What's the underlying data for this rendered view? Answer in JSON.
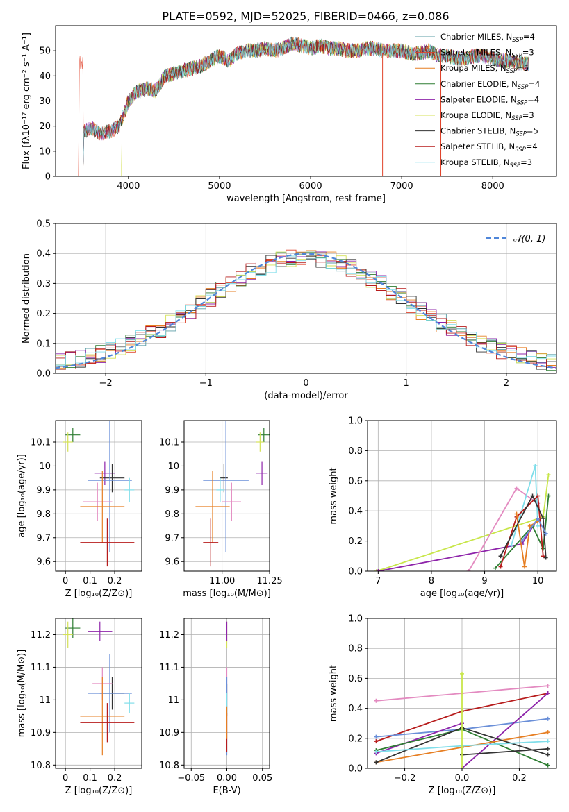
{
  "figure_title": "PLATE=0592, MJD=52025, FIBERID=0466, z=0.086",
  "colors": [
    "#5b9ea6",
    "#e0442c",
    "#e67e22",
    "#2e7d32",
    "#8e24aa",
    "#d4e157",
    "#333333",
    "#b71c1c",
    "#80deea",
    "#6a8fd8",
    "#e38ac0",
    "#c8e64a"
  ],
  "chart_data": [
    {
      "id": "spectrum",
      "type": "line",
      "title": "PLATE=0592, MJD=52025, FIBERID=0466, z=0.086",
      "xlabel": "wavelength [Angstrom, rest frame]",
      "ylabel": "Flux [fλ10⁻¹⁷ erg cm⁻² s⁻¹ A⁻¹]",
      "xlim": [
        3200,
        8700
      ],
      "ylim": [
        0,
        60
      ],
      "xticks": [
        4000,
        5000,
        6000,
        7000,
        8000
      ],
      "yticks": [
        0,
        10,
        20,
        30,
        40,
        50
      ],
      "grid": false,
      "legend_position": "top-right",
      "envelope": {
        "x": [
          3500,
          3600,
          3700,
          3800,
          3900,
          4000,
          4100,
          4200,
          4300,
          4400,
          4500,
          4600,
          4700,
          4800,
          4900,
          5000,
          5100,
          5200,
          5300,
          5400,
          5500,
          5600,
          5700,
          5800,
          5900,
          6000,
          6100,
          6200,
          6300,
          6400,
          6500,
          6600,
          6700,
          6800,
          6900,
          7000,
          7100,
          7200,
          7300,
          7400,
          7500,
          7600,
          7700,
          7800,
          7900,
          8000,
          8100,
          8200,
          8300,
          8400
        ],
        "y": [
          18,
          19,
          17,
          18,
          20,
          30,
          34,
          35,
          34,
          40,
          41,
          42,
          43,
          44,
          46,
          48,
          46,
          49,
          50,
          50,
          51,
          50,
          51,
          53,
          52,
          51,
          52,
          51,
          51,
          50,
          50,
          51,
          51,
          50,
          50,
          50,
          49,
          49,
          50,
          48,
          48,
          47,
          47,
          48,
          48,
          47,
          46,
          46,
          45,
          45
        ]
      },
      "series": [
        {
          "name": "Chabrier MILES, N_SSP=4"
        },
        {
          "name": "Salpeter MILES, N_SSP=3"
        },
        {
          "name": "Kroupa MILES, N_SSP=5"
        },
        {
          "name": "Chabrier ELODIE, N_SSP=4"
        },
        {
          "name": "Salpeter ELODIE, N_SSP=4"
        },
        {
          "name": "Kroupa ELODIE, N_SSP=3"
        },
        {
          "name": "Chabrier STELIB, N_SSP=5"
        },
        {
          "name": "Salpeter STELIB, N_SSP=4"
        },
        {
          "name": "Kroupa STELIB, N_SSP=3"
        }
      ],
      "legend": [
        {
          "name": "Chabrier MILES, N",
          "sub": "SSP",
          "tail": "=4"
        },
        {
          "name": "Salpeter MILES, N",
          "sub": "SSP",
          "tail": "=3"
        },
        {
          "name": "Kroupa MILES, N",
          "sub": "SSP",
          "tail": "=5"
        },
        {
          "name": "Chabrier ELODIE, N",
          "sub": "SSP",
          "tail": "=4"
        },
        {
          "name": "Salpeter ELODIE, N",
          "sub": "SSP",
          "tail": "=4"
        },
        {
          "name": "Kroupa ELODIE, N",
          "sub": "SSP",
          "tail": "=3"
        },
        {
          "name": "Chabrier STELIB, N",
          "sub": "SSP",
          "tail": "=5"
        },
        {
          "name": "Salpeter STELIB, N",
          "sub": "SSP",
          "tail": "=4"
        },
        {
          "name": "Kroupa STELIB, N",
          "sub": "SSP",
          "tail": "=3"
        }
      ]
    },
    {
      "id": "residuals",
      "type": "line",
      "xlabel": "(data-model)/error",
      "ylabel": "Normed distribution",
      "xlim": [
        -2.5,
        2.5
      ],
      "ylim": [
        0,
        0.5
      ],
      "xticks": [
        -2,
        -1,
        0,
        1,
        2
      ],
      "yticks": [
        0.0,
        0.1,
        0.2,
        0.3,
        0.4,
        0.5
      ],
      "grid": true,
      "legend_position": "top-right",
      "legend": [
        {
          "name": "𝒩(0, 1)"
        }
      ],
      "gaussian": {
        "mu": 0,
        "sigma": 1
      }
    },
    {
      "id": "age_vs_Z",
      "type": "scatter",
      "xlabel": "Z [log₁₀(Z/Z⊙)]",
      "ylabel": "age  [log₁₀(age/yr)]",
      "xlim": [
        -0.04,
        0.31
      ],
      "ylim": [
        9.56,
        10.19
      ],
      "xticks": [
        0.0,
        0.1,
        0.2
      ],
      "yticks": [
        9.6,
        9.7,
        9.8,
        9.9,
        10.0,
        10.1
      ],
      "grid": true,
      "points": [
        {
          "x": 0.03,
          "y": 10.13,
          "xerr": 0.03,
          "yerr": 0.03,
          "c": 3
        },
        {
          "x": 0.01,
          "y": 10.1,
          "xerr": 0.02,
          "yerr": 0.04,
          "c": 5
        },
        {
          "x": 0.16,
          "y": 9.97,
          "xerr": 0.04,
          "yerr": 0.05,
          "c": 4
        },
        {
          "x": 0.19,
          "y": 9.95,
          "xerr": 0.05,
          "yerr": 0.06,
          "c": 6
        },
        {
          "x": 0.18,
          "y": 9.94,
          "xerr": 0.09,
          "yerr": 0.3,
          "c": 9
        },
        {
          "x": 0.26,
          "y": 9.9,
          "xerr": 0.02,
          "yerr": 0.05,
          "c": 8
        },
        {
          "x": 0.13,
          "y": 9.85,
          "xerr": 0.06,
          "yerr": 0.08,
          "c": 10
        },
        {
          "x": 0.15,
          "y": 9.83,
          "xerr": 0.09,
          "yerr": 0.15,
          "c": 2
        },
        {
          "x": 0.17,
          "y": 9.68,
          "xerr": 0.11,
          "yerr": 0.1,
          "c": 7
        }
      ]
    },
    {
      "id": "age_vs_mass",
      "type": "scatter",
      "xlabel": "mass [log₁₀(M/M⊙)]",
      "xlim": [
        10.8,
        11.25
      ],
      "ylim": [
        9.56,
        10.19
      ],
      "xticks": [
        11.0,
        11.25
      ],
      "xticklabels": [
        "11.00",
        "11.25"
      ],
      "yticks": [
        9.6,
        9.7,
        9.8,
        9.9,
        10.0,
        10.1
      ],
      "grid": true,
      "points": [
        {
          "x": 11.22,
          "y": 10.13,
          "xerr": 0.03,
          "yerr": 0.03,
          "c": 3
        },
        {
          "x": 11.2,
          "y": 10.1,
          "xerr": 0.02,
          "yerr": 0.04,
          "c": 5
        },
        {
          "x": 11.21,
          "y": 9.97,
          "xerr": 0.03,
          "yerr": 0.05,
          "c": 4
        },
        {
          "x": 11.01,
          "y": 9.95,
          "xerr": 0.02,
          "yerr": 0.06,
          "c": 6
        },
        {
          "x": 11.02,
          "y": 9.94,
          "xerr": 0.12,
          "yerr": 0.3,
          "c": 9
        },
        {
          "x": 10.99,
          "y": 9.9,
          "xerr": 0.02,
          "yerr": 0.05,
          "c": 8
        },
        {
          "x": 11.05,
          "y": 9.85,
          "xerr": 0.05,
          "yerr": 0.08,
          "c": 10
        },
        {
          "x": 10.95,
          "y": 9.83,
          "xerr": 0.09,
          "yerr": 0.15,
          "c": 2
        },
        {
          "x": 10.94,
          "y": 9.68,
          "xerr": 0.04,
          "yerr": 0.1,
          "c": 7
        }
      ]
    },
    {
      "id": "weight_vs_age",
      "type": "line",
      "xlabel": "age  [log₁₀(age/yr)]",
      "ylabel": "mass weight",
      "xlim": [
        6.8,
        10.35
      ],
      "ylim": [
        0.0,
        1.0
      ],
      "xticks": [
        7,
        8,
        9,
        10
      ],
      "yticks": [
        0.0,
        0.2,
        0.4,
        0.6,
        0.8,
        1.0
      ],
      "grid": true,
      "series": [
        {
          "c": 11,
          "x": [
            6.97,
            10.1
          ],
          "y": [
            0.0,
            0.36
          ]
        },
        {
          "c": 4,
          "x": [
            7.0,
            9.7,
            10.0
          ],
          "y": [
            0.0,
            0.18,
            0.35
          ]
        },
        {
          "c": 10,
          "x": [
            8.7,
            9.6,
            10.0
          ],
          "y": [
            0.0,
            0.55,
            0.45
          ]
        },
        {
          "c": 11,
          "x": [
            10.1,
            10.2
          ],
          "y": [
            0.36,
            0.64
          ]
        },
        {
          "c": 3,
          "x": [
            9.2,
            9.9,
            10.1,
            10.2
          ],
          "y": [
            0.02,
            0.3,
            0.15,
            0.5
          ]
        },
        {
          "c": 8,
          "x": [
            9.5,
            9.95,
            10.0
          ],
          "y": [
            0.17,
            0.7,
            0.3
          ]
        },
        {
          "c": 7,
          "x": [
            9.3,
            9.6,
            10.0,
            10.1
          ],
          "y": [
            0.03,
            0.36,
            0.5,
            0.1
          ]
        },
        {
          "c": 2,
          "x": [
            9.6,
            9.75,
            9.85,
            10.0
          ],
          "y": [
            0.38,
            0.03,
            0.3,
            0.33
          ]
        },
        {
          "c": 6,
          "x": [
            9.3,
            9.9,
            10.1,
            10.15
          ],
          "y": [
            0.1,
            0.5,
            0.35,
            0.09
          ]
        },
        {
          "c": 9,
          "x": [
            9.7,
            10.0,
            10.15
          ],
          "y": [
            0.2,
            0.35,
            0.25
          ]
        }
      ]
    },
    {
      "id": "mass_vs_Z",
      "type": "scatter",
      "xlabel": "Z [log₁₀(Z/Z⊙)]",
      "ylabel": "mass [log₁₀(M/M⊙)]",
      "xlim": [
        -0.04,
        0.31
      ],
      "ylim": [
        10.79,
        11.25
      ],
      "xticks": [
        0.0,
        0.1,
        0.2
      ],
      "yticks": [
        10.8,
        10.9,
        11.0,
        11.1,
        11.2
      ],
      "grid": true,
      "points": [
        {
          "x": 0.03,
          "y": 11.22,
          "xerr": 0.03,
          "yerr": 0.03,
          "c": 3
        },
        {
          "x": 0.01,
          "y": 11.2,
          "xerr": 0.02,
          "yerr": 0.04,
          "c": 5
        },
        {
          "x": 0.14,
          "y": 11.21,
          "xerr": 0.05,
          "yerr": 0.03,
          "c": 4
        },
        {
          "x": 0.19,
          "y": 11.02,
          "xerr": 0.05,
          "yerr": 0.05,
          "c": 6
        },
        {
          "x": 0.18,
          "y": 11.02,
          "xerr": 0.09,
          "yerr": 0.12,
          "c": 9
        },
        {
          "x": 0.26,
          "y": 10.99,
          "xerr": 0.02,
          "yerr": 0.03,
          "c": 8
        },
        {
          "x": 0.15,
          "y": 11.05,
          "xerr": 0.04,
          "yerr": 0.05,
          "c": 10
        },
        {
          "x": 0.15,
          "y": 10.95,
          "xerr": 0.09,
          "yerr": 0.12,
          "c": 2
        },
        {
          "x": 0.17,
          "y": 10.93,
          "xerr": 0.11,
          "yerr": 0.06,
          "c": 7
        }
      ]
    },
    {
      "id": "mass_vs_EBV",
      "type": "scatter",
      "xlabel": "E(B-V)",
      "xlim": [
        -0.06,
        0.06
      ],
      "ylim": [
        10.79,
        11.25
      ],
      "xticks": [
        -0.05,
        0.0,
        0.05
      ],
      "xticklabels": [
        "−0.05",
        "0.00",
        "0.05"
      ],
      "yticks": [
        10.8,
        10.9,
        11.0,
        11.1,
        11.2
      ],
      "grid": true,
      "points": [
        {
          "x": 0.0,
          "y": 11.2,
          "xerr": 0,
          "yerr": 0.04,
          "c": 5
        },
        {
          "x": 0.0,
          "y": 11.21,
          "xerr": 0,
          "yerr": 0.03,
          "c": 4
        },
        {
          "x": 0.0,
          "y": 11.05,
          "xerr": 0,
          "yerr": 0.05,
          "c": 10
        },
        {
          "x": 0.0,
          "y": 11.0,
          "xerr": 0,
          "yerr": 0.05,
          "c": 6
        },
        {
          "x": 0.0,
          "y": 10.95,
          "xerr": 0,
          "yerr": 0.12,
          "c": 9
        },
        {
          "x": 0.0,
          "y": 10.9,
          "xerr": 0,
          "yerr": 0.06,
          "c": 7
        },
        {
          "x": 0.0,
          "y": 10.99,
          "xerr": 0,
          "yerr": 0.03,
          "c": 8
        },
        {
          "x": 0.0,
          "y": 10.93,
          "xerr": 0,
          "yerr": 0.05,
          "c": 2
        }
      ]
    },
    {
      "id": "weight_vs_Z",
      "type": "line",
      "xlabel": "Z [log₁₀(Z/Z⊙)]",
      "ylabel": "mass weight",
      "xlim": [
        -0.33,
        0.33
      ],
      "ylim": [
        0.0,
        1.0
      ],
      "xticks": [
        -0.2,
        0.0,
        0.2
      ],
      "xticklabels": [
        "−0.2",
        "0.0",
        "0.2"
      ],
      "yticks": [
        0.0,
        0.2,
        0.4,
        0.6,
        0.8,
        1.0
      ],
      "grid": true,
      "series": [
        {
          "c": 10,
          "x": [
            -0.3,
            0.0,
            0.3
          ],
          "y": [
            0.45,
            0.5,
            0.55
          ]
        },
        {
          "c": 7,
          "x": [
            -0.3,
            0.0,
            0.3
          ],
          "y": [
            0.18,
            0.38,
            0.5
          ]
        },
        {
          "c": 9,
          "x": [
            -0.3,
            0.0,
            0.3
          ],
          "y": [
            0.21,
            0.26,
            0.33
          ]
        },
        {
          "c": 4,
          "x": [
            -0.3,
            0.0
          ],
          "y": [
            0.1,
            0.3
          ]
        },
        {
          "c": 4,
          "x": [
            0.0,
            0.3
          ],
          "y": [
            0.0,
            0.5
          ]
        },
        {
          "c": 3,
          "x": [
            -0.3,
            0.0,
            0.3
          ],
          "y": [
            0.12,
            0.26,
            0.02
          ]
        },
        {
          "c": 2,
          "x": [
            -0.3,
            0.0,
            0.3
          ],
          "y": [
            0.04,
            0.14,
            0.24
          ]
        },
        {
          "c": 6,
          "x": [
            -0.3,
            0.0,
            0.3
          ],
          "y": [
            0.04,
            0.27,
            0.09
          ]
        },
        {
          "c": 6,
          "x": [
            0.0,
            0.3
          ],
          "y": [
            0.09,
            0.13
          ]
        },
        {
          "c": 8,
          "x": [
            -0.3,
            0.0,
            0.3
          ],
          "y": [
            0.11,
            0.15,
            0.18
          ]
        },
        {
          "c": 11,
          "x": [
            0.0,
            0.0
          ],
          "y": [
            0.0,
            0.63
          ]
        }
      ]
    }
  ]
}
